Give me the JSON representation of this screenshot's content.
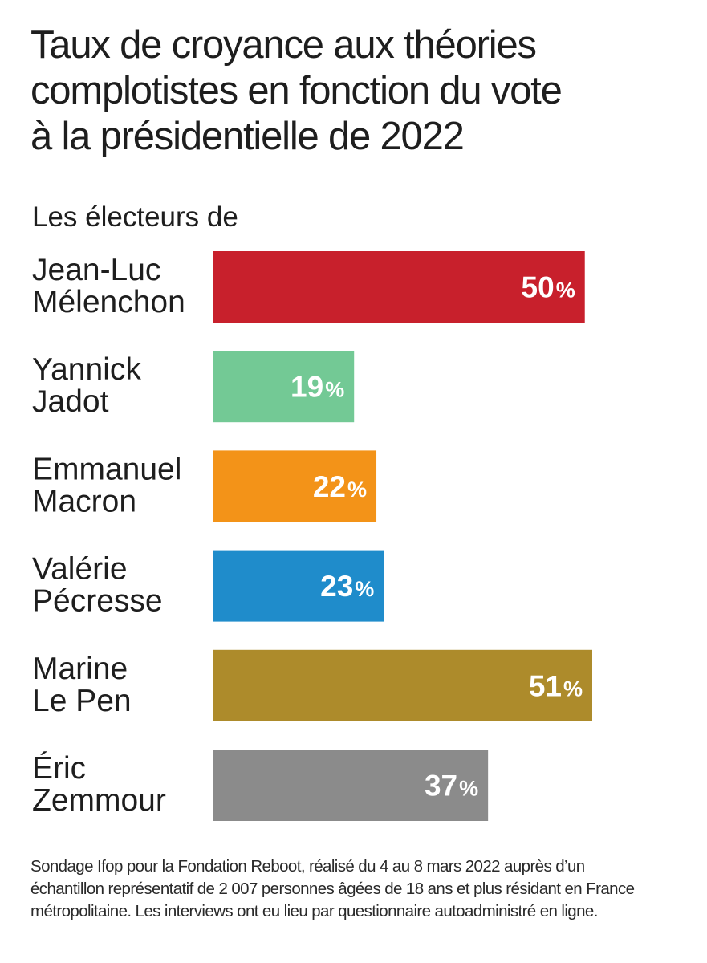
{
  "title": "Taux de croyance aux théories\ncomplotistes en fonction du vote\nà la présidentielle de 2022",
  "subtitle": "Les électeurs de",
  "chart_data": {
    "type": "bar",
    "orientation": "horizontal",
    "title": "Taux de croyance aux théories complotistes en fonction du vote à la présidentielle de 2022",
    "subtitle": "Les électeurs de",
    "unit": "%",
    "xlim": [
      0,
      51
    ],
    "grid": false,
    "legend": "none",
    "categories": [
      [
        "Jean-Luc",
        "Mélenchon"
      ],
      [
        "Yannick",
        "Jadot"
      ],
      [
        "Emmanuel",
        "Macron"
      ],
      [
        "Valérie",
        "Pécresse"
      ],
      [
        "Marine",
        "Le Pen"
      ],
      [
        "Éric",
        "Zemmour"
      ]
    ],
    "values": [
      50,
      19,
      22,
      23,
      51,
      37
    ],
    "colors": [
      "#c8202c",
      "#73c995",
      "#f39318",
      "#1f8ccb",
      "#ad8b2b",
      "#8b8b8b"
    ]
  },
  "source": [
    "Sondage Ifop pour la Fondation Reboot, réalisé du 4 au 8 mars 2022 auprès d’un",
    "échantillon représentatif de 2 007 personnes âgées de 18 ans et plus résidant en France",
    "métropolitaine. Les interviews ont eu lieu par questionnaire autoadministré en ligne."
  ]
}
